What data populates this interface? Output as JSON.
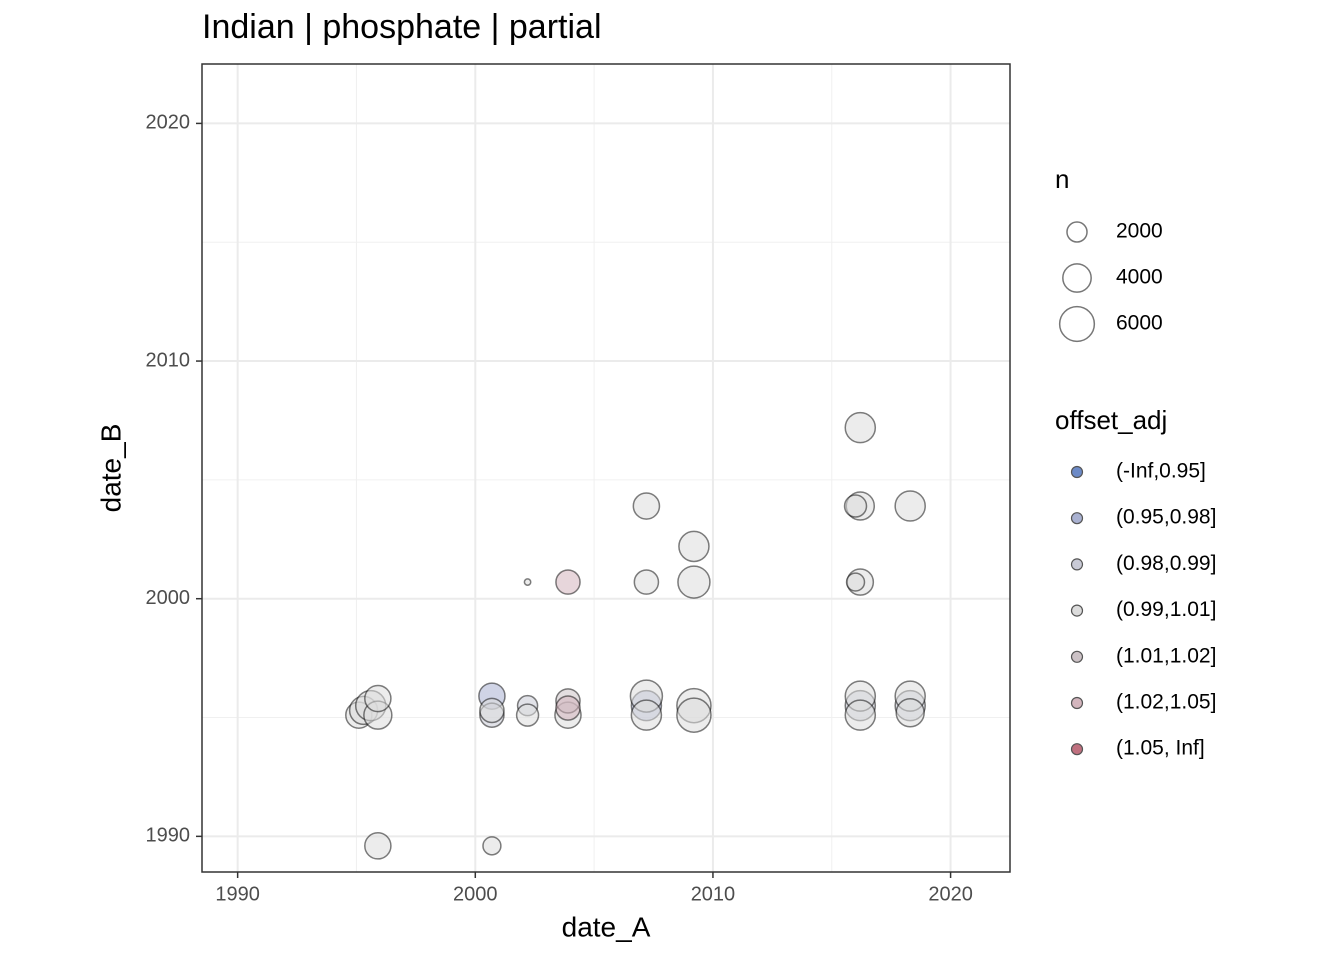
{
  "chart_data": {
    "type": "scatter",
    "title": "Indian | phosphate | partial",
    "x_label": "date_A",
    "y_label": "date_B",
    "xlim": [
      1988.5,
      2022.5
    ],
    "ylim": [
      1988.5,
      2022.5
    ],
    "xticks": [
      1990,
      2000,
      2010,
      2020
    ],
    "yticks": [
      1990,
      2000,
      2010,
      2020
    ],
    "grid": true,
    "size_legend": {
      "title": "n",
      "values": [
        2000,
        4000,
        6000
      ]
    },
    "color_legend_title": "offset_adj",
    "series": [
      {
        "name": "(-Inf,0.95]",
        "color": "#6c8ac7",
        "x": [],
        "values": [],
        "sizes": []
      },
      {
        "name": "(0.95,0.98]",
        "color": "#a9b1d1",
        "x": [
          2000.7,
          2007.2
        ],
        "values": [
          1995.9,
          1995.5
        ],
        "sizes": [
          3400,
          4500
        ]
      },
      {
        "name": "(0.98,0.99]",
        "color": "#c9cad6",
        "x": [
          2000.7,
          2002.2,
          2016.2,
          2018.3
        ],
        "values": [
          1995.1,
          1995.5,
          1995.5,
          1995.5
        ],
        "sizes": [
          2900,
          2000,
          4500,
          4500
        ]
      },
      {
        "name": "(0.99,1.01]",
        "color": "#dcdcdc",
        "x": [
          2016.2,
          2007.2,
          2009.2,
          2018.3,
          2016.2,
          2016.0,
          2002.2,
          2007.2,
          2009.2,
          2016.2,
          2016.0,
          1995.9,
          2000.7,
          1995.1,
          1995.3,
          1995.6,
          1995.9,
          1995.9,
          2002.2,
          2003.9,
          2007.2,
          2007.2,
          2009.2,
          2009.2,
          2016.2,
          2016.2,
          2018.3,
          2018.3,
          2000.7
        ],
        "values": [
          2007.2,
          2003.9,
          2002.2,
          2003.9,
          2003.9,
          2003.9,
          2000.7,
          2000.7,
          2000.7,
          2000.7,
          2000.7,
          1989.6,
          1989.6,
          1995.1,
          1995.3,
          1995.5,
          1995.1,
          1995.8,
          1995.1,
          1995.1,
          1995.9,
          1995.1,
          1995.5,
          1995.1,
          1995.9,
          1995.1,
          1995.9,
          1995.2,
          1995.3
        ],
        "sizes": [
          4500,
          3400,
          4500,
          4500,
          3900,
          2400,
          200,
          2900,
          5100,
          3400,
          1600,
          3400,
          1600,
          3400,
          3900,
          4500,
          3900,
          3400,
          2400,
          3400,
          5100,
          4500,
          5800,
          5800,
          4500,
          4500,
          4500,
          3900,
          2900
        ]
      },
      {
        "name": "(1.01,1.02]",
        "color": "#ccc2c6",
        "x": [
          2003.9
        ],
        "values": [
          1995.7
        ],
        "sizes": [
          2900
        ]
      },
      {
        "name": "(1.02,1.05]",
        "color": "#d3b5bd",
        "x": [
          2003.9,
          2003.9
        ],
        "values": [
          2000.7,
          1995.4
        ],
        "sizes": [
          2900,
          2900
        ]
      },
      {
        "name": "(1.05, Inf]",
        "color": "#c0707f",
        "x": [],
        "values": [],
        "sizes": []
      }
    ]
  }
}
